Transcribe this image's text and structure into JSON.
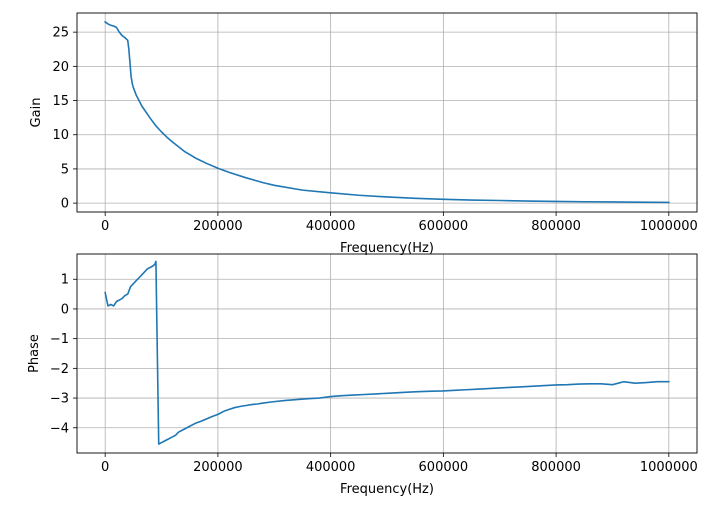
{
  "chart_data": [
    {
      "type": "line",
      "xlabel": "Frequency(Hz)",
      "ylabel": "Gain",
      "xlim": [
        -50000,
        1050000
      ],
      "ylim": [
        -1.3,
        27.8
      ],
      "xticks": [
        0,
        200000,
        400000,
        600000,
        800000,
        1000000
      ],
      "xtick_labels": [
        "0",
        "200000",
        "400000",
        "600000",
        "800000",
        "1000000"
      ],
      "yticks": [
        0,
        5,
        10,
        15,
        20,
        25
      ],
      "ytick_labels": [
        "0",
        "5",
        "10",
        "15",
        "20",
        "25"
      ],
      "grid": true,
      "series": [
        {
          "color": "#1f77b4",
          "x": [
            0,
            5000,
            10000,
            15000,
            20000,
            25000,
            30000,
            35000,
            40000,
            42000,
            44000,
            46000,
            48000,
            50000,
            55000,
            60000,
            65000,
            70000,
            75000,
            80000,
            90000,
            100000,
            110000,
            120000,
            140000,
            160000,
            180000,
            200000,
            220000,
            250000,
            280000,
            300000,
            350000,
            400000,
            450000,
            500000,
            550000,
            600000,
            650000,
            700000,
            750000,
            800000,
            850000,
            900000,
            950000,
            1000000
          ],
          "y": [
            26.5,
            26.2,
            26.0,
            25.9,
            25.7,
            25.0,
            24.5,
            24.2,
            23.8,
            22.5,
            20.5,
            18.5,
            17.5,
            16.9,
            15.8,
            15.0,
            14.2,
            13.6,
            13.0,
            12.4,
            11.3,
            10.4,
            9.6,
            8.9,
            7.6,
            6.6,
            5.8,
            5.1,
            4.5,
            3.7,
            3.0,
            2.6,
            1.9,
            1.5,
            1.15,
            0.9,
            0.7,
            0.55,
            0.45,
            0.38,
            0.3,
            0.25,
            0.2,
            0.17,
            0.13,
            0.1
          ]
        }
      ]
    },
    {
      "type": "line",
      "xlabel": "Frequency(Hz)",
      "ylabel": "Phase",
      "xlim": [
        -50000,
        1050000
      ],
      "ylim": [
        -4.85,
        1.85
      ],
      "xticks": [
        0,
        200000,
        400000,
        600000,
        800000,
        1000000
      ],
      "xtick_labels": [
        "0",
        "200000",
        "400000",
        "600000",
        "800000",
        "1000000"
      ],
      "yticks": [
        1,
        0,
        -1,
        -2,
        -3,
        -4
      ],
      "ytick_labels": [
        "1",
        "0",
        "−1",
        "−2",
        "−3",
        "−4"
      ],
      "grid": true,
      "series": [
        {
          "color": "#1f77b4",
          "x": [
            0,
            5000,
            10000,
            15000,
            20000,
            25000,
            30000,
            35000,
            40000,
            45000,
            50000,
            55000,
            60000,
            65000,
            70000,
            75000,
            80000,
            85000,
            88000,
            90000,
            95000,
            100000,
            105000,
            110000,
            115000,
            120000,
            125000,
            130000,
            140000,
            150000,
            160000,
            170000,
            180000,
            190000,
            200000,
            210000,
            220000,
            230000,
            240000,
            250000,
            260000,
            270000,
            280000,
            300000,
            320000,
            340000,
            360000,
            380000,
            400000,
            420000,
            440000,
            460000,
            480000,
            500000,
            520000,
            540000,
            560000,
            580000,
            600000,
            620000,
            640000,
            660000,
            680000,
            700000,
            720000,
            740000,
            760000,
            780000,
            800000,
            820000,
            840000,
            860000,
            880000,
            900000,
            920000,
            940000,
            960000,
            980000,
            1000000
          ],
          "y": [
            0.55,
            0.1,
            0.15,
            0.1,
            0.25,
            0.3,
            0.35,
            0.45,
            0.5,
            0.75,
            0.85,
            0.95,
            1.05,
            1.15,
            1.25,
            1.35,
            1.4,
            1.45,
            1.5,
            1.6,
            -4.55,
            -4.5,
            -4.45,
            -4.4,
            -4.35,
            -4.3,
            -4.25,
            -4.15,
            -4.05,
            -3.95,
            -3.85,
            -3.78,
            -3.7,
            -3.62,
            -3.55,
            -3.45,
            -3.38,
            -3.32,
            -3.28,
            -3.25,
            -3.22,
            -3.2,
            -3.17,
            -3.12,
            -3.08,
            -3.05,
            -3.02,
            -3.0,
            -2.95,
            -2.92,
            -2.9,
            -2.88,
            -2.86,
            -2.84,
            -2.82,
            -2.8,
            -2.78,
            -2.77,
            -2.76,
            -2.74,
            -2.72,
            -2.7,
            -2.68,
            -2.66,
            -2.64,
            -2.62,
            -2.6,
            -2.58,
            -2.56,
            -2.55,
            -2.53,
            -2.52,
            -2.52,
            -2.55,
            -2.45,
            -2.5,
            -2.48,
            -2.45,
            -2.45
          ]
        }
      ]
    }
  ]
}
